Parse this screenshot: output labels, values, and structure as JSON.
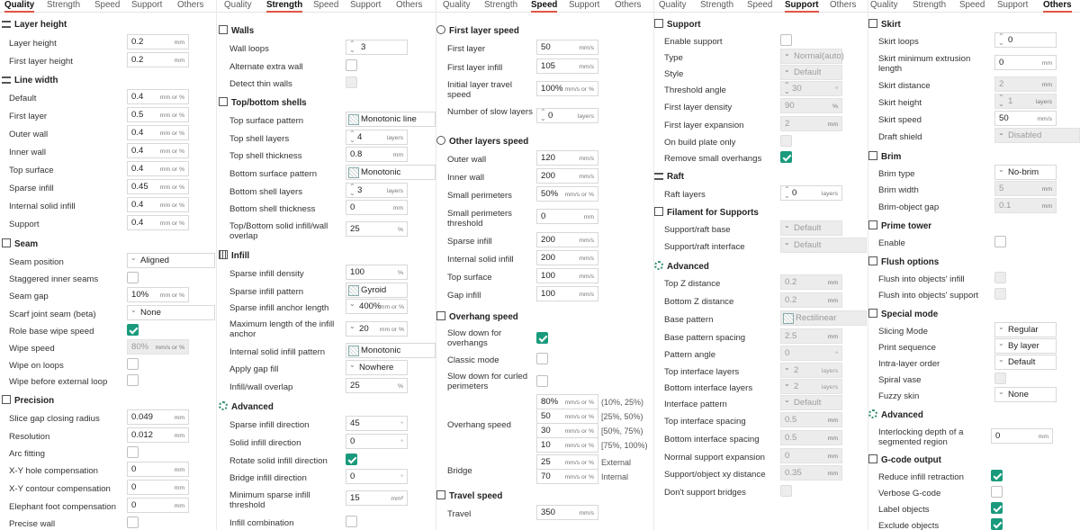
{
  "tabs": [
    "Quality",
    "Strength",
    "Speed",
    "Support",
    "Others"
  ],
  "quality": {
    "layer_height": "Layer height",
    "items_layer": [
      {
        "label": "Layer height",
        "value": "0.2",
        "unit": "mm"
      },
      {
        "label": "First layer height",
        "value": "0.2",
        "unit": "mm"
      }
    ],
    "line_width": "Line width",
    "items_line": [
      {
        "label": "Default",
        "value": "0.4",
        "unit": "mm or %"
      },
      {
        "label": "First layer",
        "value": "0.5",
        "unit": "mm or %"
      },
      {
        "label": "Outer wall",
        "value": "0.4",
        "unit": "mm or %"
      },
      {
        "label": "Inner wall",
        "value": "0.4",
        "unit": "mm or %"
      },
      {
        "label": "Top surface",
        "value": "0.4",
        "unit": "mm or %"
      },
      {
        "label": "Sparse infill",
        "value": "0.45",
        "unit": "mm or %"
      },
      {
        "label": "Internal solid infill",
        "value": "0.4",
        "unit": "mm or %"
      },
      {
        "label": "Support",
        "value": "0.4",
        "unit": "mm or %"
      }
    ],
    "seam": "Seam",
    "seam_position_label": "Seam position",
    "seam_position": "Aligned",
    "staggered": "Staggered inner seams",
    "seam_gap_label": "Seam gap",
    "seam_gap": "10%",
    "seam_gap_unit": "mm or %",
    "scarf_label": "Scarf joint seam (beta)",
    "scarf": "None",
    "role_wipe": "Role base wipe speed",
    "wipe_speed_label": "Wipe speed",
    "wipe_speed": "80%",
    "wipe_speed_unit": "mm/s or %",
    "wipe_loops": "Wipe on loops",
    "wipe_before": "Wipe before external loop",
    "precision": "Precision",
    "items_prec": [
      {
        "label": "Slice gap closing radius",
        "value": "0.049",
        "unit": "mm"
      },
      {
        "label": "Resolution",
        "value": "0.012",
        "unit": "mm"
      }
    ],
    "arc": "Arc fitting",
    "items_prec2": [
      {
        "label": "X-Y hole compensation",
        "value": "0",
        "unit": "mm"
      },
      {
        "label": "X-Y contour compensation",
        "value": "0",
        "unit": "mm"
      },
      {
        "label": "Elephant foot compensation",
        "value": "0",
        "unit": "mm"
      }
    ],
    "precise_wall": "Precise wall"
  },
  "strength": {
    "walls": "Walls",
    "wall_loops_label": "Wall loops",
    "wall_loops": "3",
    "alt_wall": "Alternate extra wall",
    "thin_walls": "Detect thin walls",
    "shells": "Top/bottom shells",
    "top_pattern_label": "Top surface pattern",
    "top_pattern": "Monotonic line",
    "top_layers_label": "Top shell layers",
    "top_layers": "4",
    "layers_unit": "layers",
    "top_thick_label": "Top shell thickness",
    "top_thick": "0.8",
    "mm": "mm",
    "bottom_pattern_label": "Bottom surface pattern",
    "bottom_pattern": "Monotonic",
    "bottom_layers_label": "Bottom shell layers",
    "bottom_layers": "3",
    "bottom_thick_label": "Bottom shell thickness",
    "bottom_thick": "0",
    "overlap_label": "Top/Bottom solid infill/wall overlap",
    "overlap": "25",
    "pct": "%",
    "infill": "Infill",
    "density_label": "Sparse infill density",
    "density": "100",
    "infill_pattern_label": "Sparse infill pattern",
    "infill_pattern": "Gyroid",
    "anchor_label": "Sparse infill anchor length",
    "anchor": "400%",
    "anchor_unit": "mm or %",
    "max_anchor_label": "Maximum length of the infill anchor",
    "max_anchor": "20",
    "max_anchor_unit": "mm or %",
    "internal_pattern_label": "Internal solid infill pattern",
    "internal_pattern": "Monotonic",
    "gap_fill_label": "Apply gap fill",
    "gap_fill": "Nowhere",
    "infill_overlap_label": "Infill/wall overlap",
    "infill_overlap": "25",
    "advanced": "Advanced",
    "sparse_dir_label": "Sparse infill direction",
    "sparse_dir": "45",
    "deg": "°",
    "solid_dir_label": "Solid infill direction",
    "solid_dir": "0",
    "rotate": "Rotate solid infill direction",
    "bridge_dir_label": "Bridge infill direction",
    "bridge_dir": "0",
    "min_sparse_label": "Minimum sparse infill threshold",
    "min_sparse": "15",
    "mm2": "mm²",
    "combination": "Infill combination"
  },
  "speed": {
    "first_layer": "First layer speed",
    "items_first": [
      {
        "label": "First layer",
        "value": "50",
        "unit": "mm/s"
      },
      {
        "label": "First layer infill",
        "value": "105",
        "unit": "mm/s"
      }
    ],
    "travel_label": "Initial layer travel speed",
    "travel": "100%",
    "travel_unit": "mm/s or %",
    "slow_layers_label": "Number of slow layers",
    "slow_layers": "0",
    "slow_layers_unit": "layers",
    "other": "Other layers speed",
    "items_other": [
      {
        "label": "Outer wall",
        "value": "120",
        "unit": "mm/s"
      },
      {
        "label": "Inner wall",
        "value": "200",
        "unit": "mm/s"
      }
    ],
    "small_per_label": "Small perimeters",
    "small_per": "50%",
    "small_per_unit": "mm/s or %",
    "small_thr_label": "Small perimeters threshold",
    "small_thr": "0",
    "small_thr_unit": "mm",
    "items_other2": [
      {
        "label": "Sparse infill",
        "value": "200",
        "unit": "mm/s"
      },
      {
        "label": "Internal solid infill",
        "value": "200",
        "unit": "mm/s"
      },
      {
        "label": "Top surface",
        "value": "100",
        "unit": "mm/s"
      },
      {
        "label": "Gap infill",
        "value": "100",
        "unit": "mm/s"
      }
    ],
    "overhang": "Overhang speed",
    "slow_down": "Slow down for overhangs",
    "classic": "Classic mode",
    "curled": "Slow down for curled perimeters",
    "overhang_speed_label": "Overhang speed",
    "overhangs": [
      {
        "value": "80%",
        "range": "(10%, 25%)"
      },
      {
        "value": "50",
        "range": "[25%, 50%)"
      },
      {
        "value": "30",
        "range": "[50%, 75%)"
      },
      {
        "value": "10",
        "range": "[75%, 100%)"
      }
    ],
    "pct_unit": "mm/s or %",
    "bridge_label": "Bridge",
    "bridge_ext": "25",
    "bridge_ext_label": "External",
    "bridge_int": "70",
    "bridge_int_label": "Internal",
    "travel_sec": "Travel speed",
    "travel2_label": "Travel",
    "travel2": "350",
    "mms": "mm/s"
  },
  "support": {
    "support": "Support",
    "enable": "Enable support",
    "type_label": "Type",
    "type": "Normal(auto)",
    "style_label": "Style",
    "style": "Default",
    "threshold_label": "Threshold angle",
    "threshold": "30",
    "deg": "°",
    "density_label": "First layer density",
    "density": "90",
    "pct": "%",
    "expansion_label": "First layer expansion",
    "expansion": "2",
    "mm": "mm",
    "build_plate": "On build plate only",
    "remove_small": "Remove small overhangs",
    "raft": "Raft",
    "raft_label": "Raft layers",
    "raft_val": "0",
    "layers": "layers",
    "filament": "Filament for Supports",
    "base_label": "Support/raft base",
    "base": "Default",
    "iface_label": "Support/raft interface",
    "iface": "Default",
    "advanced": "Advanced",
    "top_z_label": "Top Z distance",
    "top_z": "0.2",
    "bot_z_label": "Bottom Z distance",
    "bot_z": "0.2",
    "base_pattern_label": "Base pattern",
    "base_pattern": "Rectilinear",
    "base_spacing_label": "Base pattern spacing",
    "base_spacing": "2.5",
    "angle_label": "Pattern angle",
    "angle": "0",
    "top_iface_label": "Top interface layers",
    "top_iface": "2",
    "bot_iface_label": "Bottom interface layers",
    "bot_iface": "2",
    "iface_pattern_label": "Interface pattern",
    "iface_pattern": "Default",
    "top_spacing_label": "Top interface spacing",
    "top_spacing": "0.5",
    "bot_spacing_label": "Bottom interface spacing",
    "bot_spacing": "0.5",
    "normal_exp_label": "Normal support expansion",
    "normal_exp": "0",
    "xy_label": "Support/object xy distance",
    "xy": "0.35",
    "no_bridges": "Don't support bridges"
  },
  "others": {
    "skirt": "Skirt",
    "loops_label": "Skirt loops",
    "loops": "0",
    "min_ext_label": "Skirt minimum extrusion length",
    "min_ext": "0",
    "mm": "mm",
    "dist_label": "Skirt distance",
    "dist": "2",
    "height_label": "Skirt height",
    "height": "1",
    "layers": "layers",
    "speed_label": "Skirt speed",
    "speed": "50",
    "mms": "mm/s",
    "draft_label": "Draft shield",
    "draft": "Disabled",
    "brim": "Brim",
    "brim_type_label": "Brim type",
    "brim_type": "No-brim",
    "brim_width_label": "Brim width",
    "brim_width": "5",
    "brim_gap_label": "Brim-object gap",
    "brim_gap": "0.1",
    "prime": "Prime tower",
    "enable": "Enable",
    "flush": "Flush options",
    "flush_infill": "Flush into objects' infill",
    "flush_support": "Flush into objects' support",
    "special": "Special mode",
    "slicing_label": "Slicing Mode",
    "slicing": "Regular",
    "sequence_label": "Print sequence",
    "sequence": "By layer",
    "intra_label": "Intra-layer order",
    "intra": "Default",
    "spiral": "Spiral vase",
    "fuzzy_label": "Fuzzy skin",
    "fuzzy": "None",
    "advanced": "Advanced",
    "interlock_label": "Interlocking depth of a segmented region",
    "interlock": "0",
    "gcode": "G-code output",
    "reduce": "Reduce infill retraction",
    "verbose": "Verbose G-code",
    "label_obj": "Label objects",
    "exclude": "Exclude objects"
  }
}
